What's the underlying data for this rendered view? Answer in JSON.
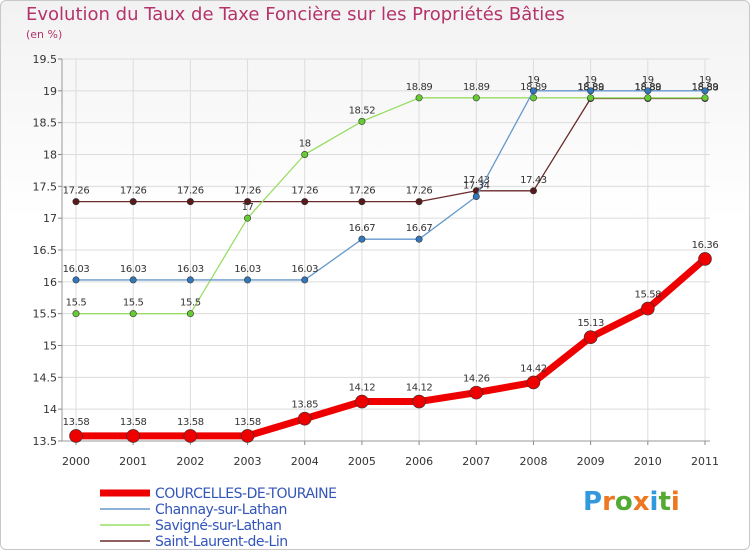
{
  "chart_data": {
    "type": "line",
    "title": "Evolution du Taux de Taxe Foncière sur les Propriétés Bâties",
    "ylabel": "(en %)",
    "xlabel": "",
    "categories": [
      "2000",
      "2001",
      "2002",
      "2003",
      "2004",
      "2005",
      "2006",
      "2007",
      "2008",
      "2009",
      "2010",
      "2011"
    ],
    "ylim": [
      13.5,
      19.5
    ],
    "yticks": [
      13.5,
      14,
      14.5,
      15,
      15.5,
      16,
      16.5,
      17,
      17.5,
      18,
      18.5,
      19,
      19.5
    ],
    "grid": true,
    "legend_position": "bottom-left",
    "series": [
      {
        "name": "Saint-Laurent-de-Lin",
        "color": "#6b2a2a",
        "marker": "#5a1a1a",
        "width": 1.3,
        "markerSize": 3.2,
        "values": [
          17.26,
          17.26,
          17.26,
          17.26,
          17.26,
          17.26,
          17.26,
          17.43,
          17.43,
          18.88,
          18.88,
          18.88
        ],
        "labels": [
          "17.26",
          "17.26",
          "17.26",
          "17.26",
          "17.26",
          "17.26",
          "17.26",
          "17.43",
          "17.43",
          "18.88",
          "18.88",
          "18.88"
        ]
      },
      {
        "name": "Savigné-sur-Lathan",
        "color": "#99dd66",
        "marker": "#66cc33",
        "width": 1.3,
        "markerSize": 3.2,
        "values": [
          15.5,
          15.5,
          15.5,
          17,
          18,
          18.52,
          18.89,
          18.89,
          18.89,
          18.89,
          18.89,
          18.89
        ],
        "labels": [
          "15.5",
          "15.5",
          "15.5",
          "17",
          "18",
          "18.52",
          "18.89",
          "18.89",
          "18.89",
          "18.89",
          "18.89",
          "18.89"
        ]
      },
      {
        "name": "Channay-sur-Lathan",
        "color": "#6699cc",
        "marker": "#3377bb",
        "width": 1.3,
        "markerSize": 3.2,
        "values": [
          16.03,
          16.03,
          16.03,
          16.03,
          16.03,
          16.67,
          16.67,
          17.34,
          19,
          19,
          19,
          19
        ],
        "labels": [
          "16.03",
          "16.03",
          "16.03",
          "16.03",
          "16.03",
          "16.67",
          "16.67",
          "17.34",
          "19",
          "19",
          "19",
          "19"
        ]
      },
      {
        "name": "COURCELLES-DE-TOURAINE",
        "color": "#ee0000",
        "marker": "#ee0000",
        "width": 7,
        "markerSize": 6.5,
        "values": [
          13.58,
          13.58,
          13.58,
          13.58,
          13.85,
          14.12,
          14.12,
          14.26,
          14.42,
          15.13,
          15.58,
          16.36
        ],
        "labels": [
          "13.58",
          "13.58",
          "13.58",
          "13.58",
          "13.85",
          "14.12",
          "14.12",
          "14.26",
          "14.42",
          "15.13",
          "15.58",
          "16.36"
        ]
      }
    ],
    "legend_order": [
      "COURCELLES-DE-TOURAINE",
      "Channay-sur-Lathan",
      "Savigné-sur-Lathan",
      "Saint-Laurent-de-Lin"
    ]
  },
  "logo": {
    "letters": [
      "P",
      "r",
      "o",
      "x",
      "i",
      "t",
      "i"
    ],
    "colors": [
      "#3399dd",
      "#ee7722",
      "#55aa33",
      "#ee7722",
      "#3399dd",
      "#55aa33",
      "#ee7722"
    ]
  }
}
